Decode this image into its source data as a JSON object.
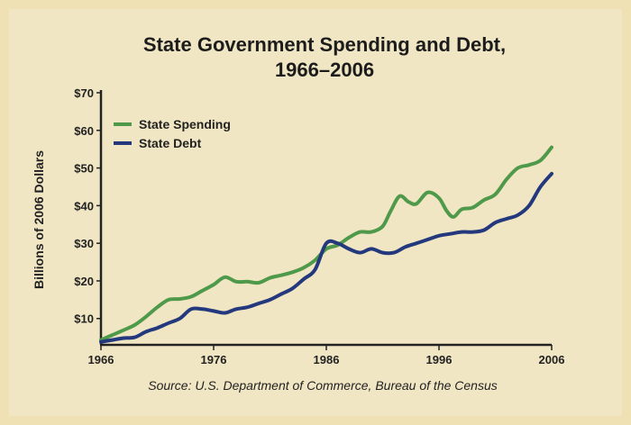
{
  "chart_data": {
    "type": "line",
    "title": [
      "State Government Spending and Debt,",
      "1966–2006"
    ],
    "ylabel": "Billions of 2006 Dollars",
    "xlabel": "",
    "xlim": [
      1966,
      2006
    ],
    "ylim": [
      3,
      70
    ],
    "x_ticks": [
      "1966",
      "1976",
      "1986",
      "1996",
      "2006"
    ],
    "x_tick_values": [
      1966,
      1976,
      1986,
      1996,
      2006
    ],
    "y_ticks": [
      "$10",
      "$20",
      "$30",
      "$40",
      "$50",
      "$60",
      "$70"
    ],
    "y_tick_values": [
      10,
      20,
      30,
      40,
      50,
      60,
      70
    ],
    "legend_position": "top-left",
    "source": "Source: U.S. Department of Commerce, Bureau of the Census",
    "series": [
      {
        "name": "State Spending",
        "color": "#4f9a4a",
        "points": [
          [
            1966,
            4.3
          ],
          [
            1967,
            5.6
          ],
          [
            1968,
            6.9
          ],
          [
            1969,
            8.3
          ],
          [
            1970,
            10.5
          ],
          [
            1971,
            13.0
          ],
          [
            1972,
            15.0
          ],
          [
            1973,
            15.2
          ],
          [
            1974,
            15.8
          ],
          [
            1975,
            17.4
          ],
          [
            1976,
            19.0
          ],
          [
            1977,
            21.0
          ],
          [
            1978,
            19.8
          ],
          [
            1979,
            19.8
          ],
          [
            1980,
            19.5
          ],
          [
            1981,
            20.8
          ],
          [
            1982,
            21.5
          ],
          [
            1983,
            22.3
          ],
          [
            1984,
            23.5
          ],
          [
            1985,
            25.5
          ],
          [
            1986,
            28.5
          ],
          [
            1987,
            29.5
          ],
          [
            1988,
            31.5
          ],
          [
            1989,
            33.0
          ],
          [
            1990,
            33.0
          ],
          [
            1991,
            34.5
          ],
          [
            1991.7,
            38.5
          ],
          [
            1992.5,
            42.5
          ],
          [
            1993.3,
            41.0
          ],
          [
            1994,
            40.5
          ],
          [
            1995,
            43.5
          ],
          [
            1996,
            42.0
          ],
          [
            1996.7,
            38.5
          ],
          [
            1997.3,
            37.0
          ],
          [
            1998,
            39.0
          ],
          [
            1999,
            39.5
          ],
          [
            2000,
            41.5
          ],
          [
            2001,
            43.0
          ],
          [
            2002,
            47.0
          ],
          [
            2003,
            50.0
          ],
          [
            2004,
            50.8
          ],
          [
            2005,
            52.0
          ],
          [
            2006,
            55.5
          ]
        ]
      },
      {
        "name": "State Debt",
        "color": "#24397d",
        "points": [
          [
            1966,
            3.8
          ],
          [
            1967,
            4.3
          ],
          [
            1968,
            4.8
          ],
          [
            1969,
            5.0
          ],
          [
            1970,
            6.5
          ],
          [
            1971,
            7.5
          ],
          [
            1972,
            8.8
          ],
          [
            1973,
            10.0
          ],
          [
            1974,
            12.5
          ],
          [
            1975,
            12.5
          ],
          [
            1976,
            12.0
          ],
          [
            1977,
            11.5
          ],
          [
            1978,
            12.5
          ],
          [
            1979,
            13.0
          ],
          [
            1980,
            14.0
          ],
          [
            1981,
            15.0
          ],
          [
            1982,
            16.5
          ],
          [
            1983,
            18.0
          ],
          [
            1984,
            20.5
          ],
          [
            1985,
            23.0
          ],
          [
            1986,
            30.0
          ],
          [
            1987,
            30.0
          ],
          [
            1988,
            28.5
          ],
          [
            1989,
            27.5
          ],
          [
            1990,
            28.5
          ],
          [
            1991,
            27.5
          ],
          [
            1992,
            27.5
          ],
          [
            1993,
            29.0
          ],
          [
            1994,
            30.0
          ],
          [
            1995,
            31.0
          ],
          [
            1996,
            32.0
          ],
          [
            1997,
            32.5
          ],
          [
            1998,
            33.0
          ],
          [
            1999,
            33.0
          ],
          [
            2000,
            33.5
          ],
          [
            2001,
            35.5
          ],
          [
            2002,
            36.5
          ],
          [
            2003,
            37.5
          ],
          [
            2004,
            40.0
          ],
          [
            2005,
            45.0
          ],
          [
            2006,
            48.5
          ]
        ]
      }
    ]
  }
}
